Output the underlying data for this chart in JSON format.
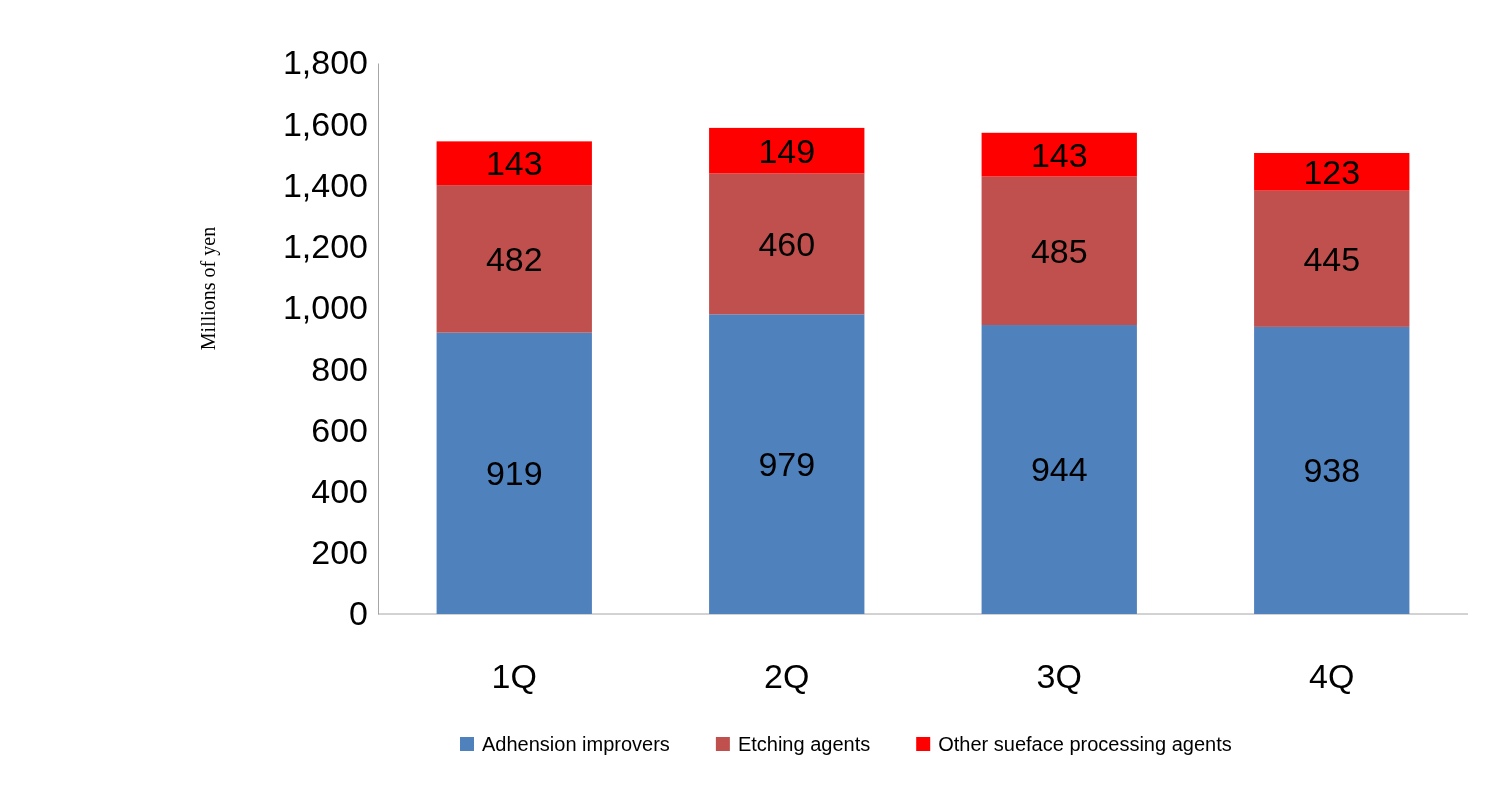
{
  "chart_data": {
    "type": "bar",
    "stacked": true,
    "ylabel": "Millions of yen",
    "categories": [
      "1Q",
      "2Q",
      "3Q",
      "4Q"
    ],
    "series": [
      {
        "name": "Adhension improvers",
        "color": "#4f81bd",
        "values": [
          919,
          979,
          944,
          938
        ]
      },
      {
        "name": "Etching agents",
        "color": "#c0504d",
        "values": [
          482,
          460,
          485,
          445
        ]
      },
      {
        "name": "Other sueface processing agents",
        "color": "#ff0000",
        "values": [
          143,
          149,
          143,
          123
        ]
      }
    ],
    "ylim": [
      0,
      1800
    ],
    "yticks": [
      0,
      {
        "value": 200,
        "label": "200"
      },
      {
        "value": 400,
        "label": "400"
      },
      {
        "value": 600,
        "label": "600"
      },
      {
        "value": 800,
        "label": "800"
      },
      {
        "value": 1000,
        "label": "1,000"
      },
      {
        "value": 1200,
        "label": "1,200"
      },
      {
        "value": 1400,
        "label": "1,400"
      },
      {
        "value": 1600,
        "label": "1,600"
      },
      {
        "value": 1800,
        "label": "1,800"
      }
    ],
    "data_labels": true,
    "legend": "bottom",
    "grid": false
  }
}
